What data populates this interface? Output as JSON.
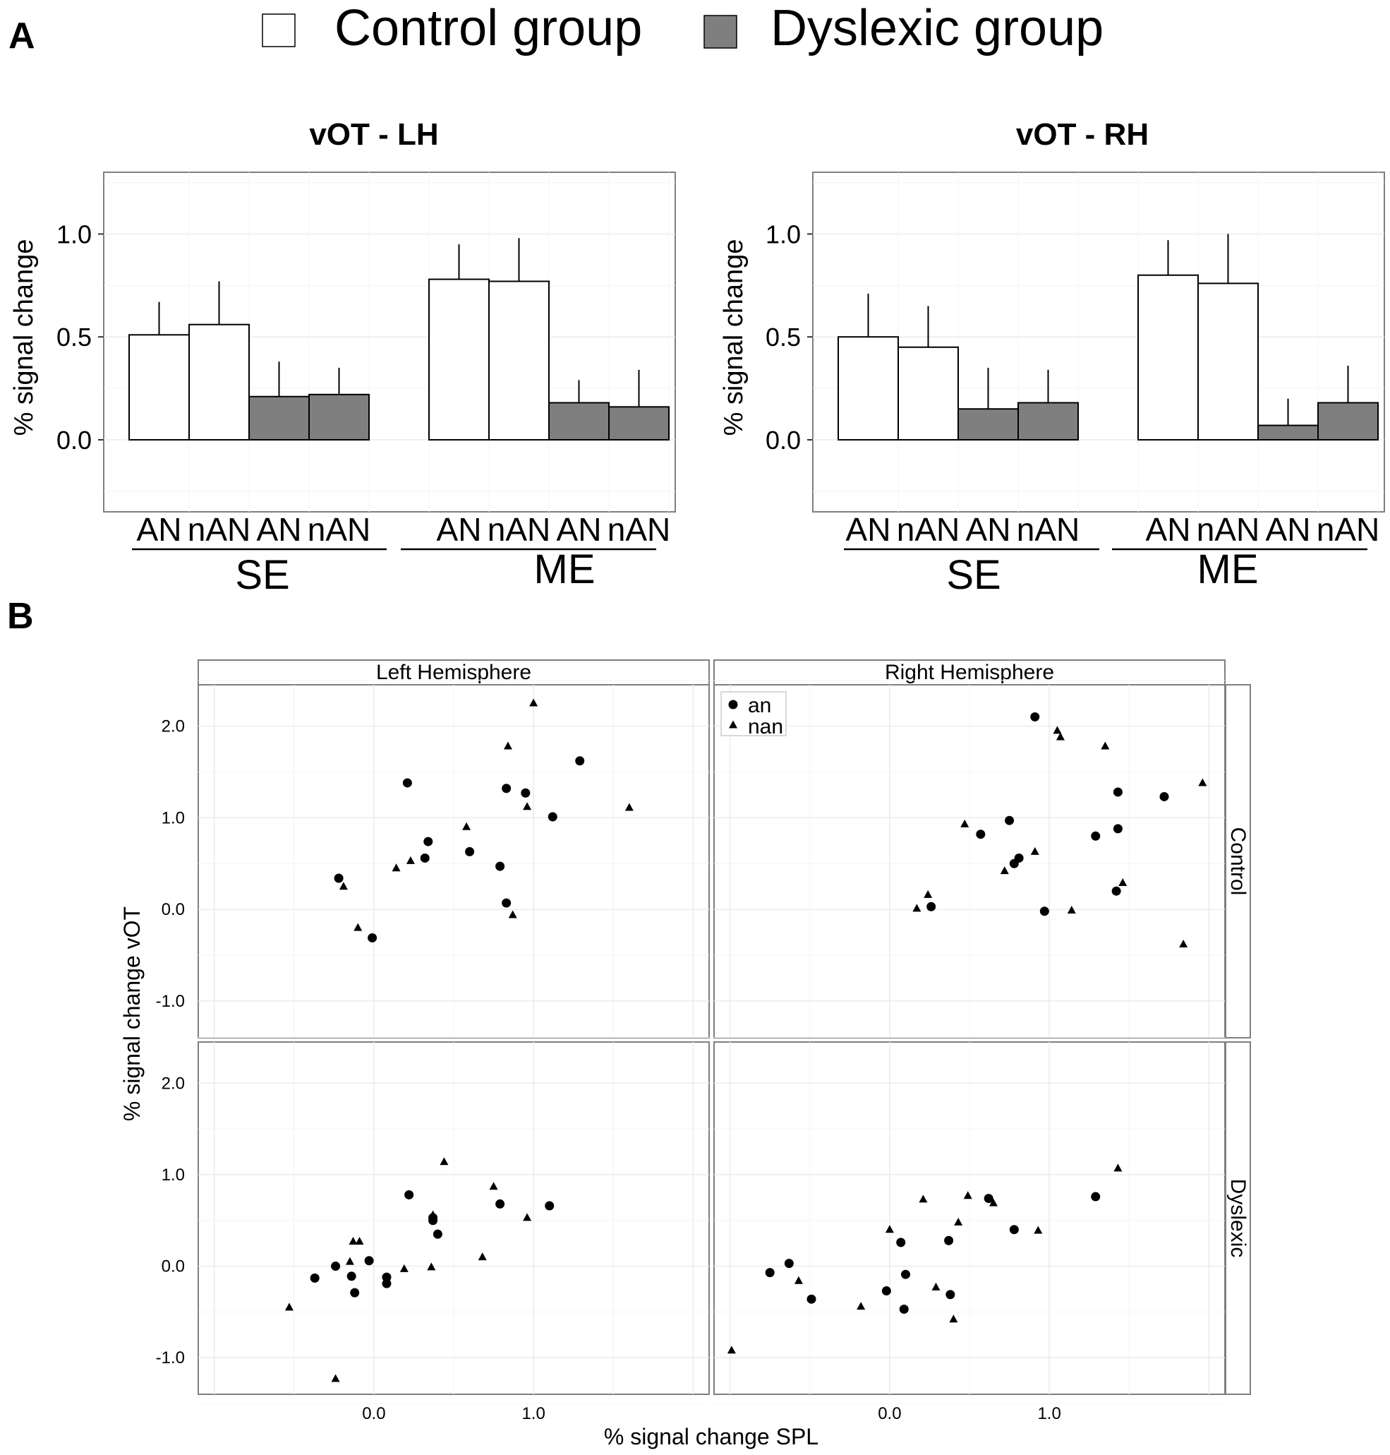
{
  "panel_labels": {
    "a": "A",
    "b": "B"
  },
  "legend": {
    "control": {
      "label": "Control group",
      "color": "#ffffff"
    },
    "dyslexic": {
      "label": "Dyslexic group",
      "color": "#7f7f7f"
    }
  },
  "colors": {
    "control_fill": "#ffffff",
    "dyslexic_fill": "#7f7f7f",
    "stroke": "#000000",
    "grid": "#ebebeb",
    "frame": "#7f7f7f"
  },
  "chart_data": [
    {
      "type": "bar",
      "title": "vOT - LH",
      "ylabel": "% signal change",
      "ylim": [
        -0.35,
        1.3
      ],
      "yticks": [
        0.0,
        0.5,
        1.0
      ],
      "ytick_labels": [
        "0.0",
        "0.5",
        "1.0"
      ],
      "categories": [
        "AN",
        "nAN",
        "AN",
        "nAN",
        "AN",
        "nAN",
        "AN",
        "nAN"
      ],
      "groups": [
        "SE",
        "ME"
      ],
      "bars": [
        {
          "cond": "SE",
          "group": "Control",
          "cat": "AN",
          "value": 0.51,
          "err": 0.16
        },
        {
          "cond": "SE",
          "group": "Control",
          "cat": "nAN",
          "value": 0.56,
          "err": 0.21
        },
        {
          "cond": "SE",
          "group": "Dyslexic",
          "cat": "AN",
          "value": 0.21,
          "err": 0.17
        },
        {
          "cond": "SE",
          "group": "Dyslexic",
          "cat": "nAN",
          "value": 0.22,
          "err": 0.13
        },
        {
          "cond": "ME",
          "group": "Control",
          "cat": "AN",
          "value": 0.78,
          "err": 0.17
        },
        {
          "cond": "ME",
          "group": "Control",
          "cat": "nAN",
          "value": 0.77,
          "err": 0.21
        },
        {
          "cond": "ME",
          "group": "Dyslexic",
          "cat": "AN",
          "value": 0.18,
          "err": 0.11
        },
        {
          "cond": "ME",
          "group": "Dyslexic",
          "cat": "nAN",
          "value": 0.16,
          "err": 0.18
        }
      ]
    },
    {
      "type": "bar",
      "title": "vOT - RH",
      "ylabel": "% signal change",
      "ylim": [
        -0.35,
        1.3
      ],
      "yticks": [
        0.0,
        0.5,
        1.0
      ],
      "ytick_labels": [
        "0.0",
        "0.5",
        "1.0"
      ],
      "categories": [
        "AN",
        "nAN",
        "AN",
        "nAN",
        "AN",
        "nAN",
        "AN",
        "nAN"
      ],
      "groups": [
        "SE",
        "ME"
      ],
      "bars": [
        {
          "cond": "SE",
          "group": "Control",
          "cat": "AN",
          "value": 0.5,
          "err": 0.21
        },
        {
          "cond": "SE",
          "group": "Control",
          "cat": "nAN",
          "value": 0.45,
          "err": 0.2
        },
        {
          "cond": "SE",
          "group": "Dyslexic",
          "cat": "AN",
          "value": 0.15,
          "err": 0.2
        },
        {
          "cond": "SE",
          "group": "Dyslexic",
          "cat": "nAN",
          "value": 0.18,
          "err": 0.16
        },
        {
          "cond": "ME",
          "group": "Control",
          "cat": "AN",
          "value": 0.8,
          "err": 0.17
        },
        {
          "cond": "ME",
          "group": "Control",
          "cat": "nAN",
          "value": 0.76,
          "err": 0.24
        },
        {
          "cond": "ME",
          "group": "Dyslexic",
          "cat": "AN",
          "value": 0.07,
          "err": 0.13
        },
        {
          "cond": "ME",
          "group": "Dyslexic",
          "cat": "nAN",
          "value": 0.18,
          "err": 0.18
        }
      ]
    },
    {
      "type": "scatter",
      "xlabel": "% signal change SPL",
      "ylabel": "% signal change vOT",
      "xlim": [
        -1.1,
        2.1
      ],
      "ylim": [
        -1.4,
        2.45
      ],
      "xticks": [
        0.0,
        1.0
      ],
      "xtick_labels": [
        "0.0",
        "1.0"
      ],
      "yticks": [
        -1.0,
        0.0,
        1.0,
        2.0
      ],
      "ytick_labels": [
        "-1.0",
        "0.0",
        "1.0",
        "2.0"
      ],
      "columns": [
        "Left Hemisphere",
        "Right Hemisphere"
      ],
      "rows": [
        "Control",
        "Dyslexic"
      ],
      "legend": [
        {
          "key": "an",
          "shape": "circle",
          "label": "an"
        },
        {
          "key": "nan",
          "shape": "triangle",
          "label": "nan"
        }
      ],
      "panels": [
        {
          "row": "Control",
          "col": "Left Hemisphere",
          "an": [
            [
              -0.22,
              0.34
            ],
            [
              -0.01,
              -0.31
            ],
            [
              0.21,
              1.38
            ],
            [
              0.32,
              0.56
            ],
            [
              0.34,
              0.74
            ],
            [
              0.6,
              0.63
            ],
            [
              0.79,
              0.47
            ],
            [
              0.83,
              1.32
            ],
            [
              0.83,
              0.07
            ],
            [
              0.95,
              1.27
            ],
            [
              1.12,
              1.01
            ],
            [
              1.29,
              1.62
            ]
          ],
          "nan": [
            [
              -0.19,
              0.25
            ],
            [
              -0.1,
              -0.2
            ],
            [
              0.14,
              0.45
            ],
            [
              0.23,
              0.53
            ],
            [
              0.58,
              0.9
            ],
            [
              0.84,
              1.78
            ],
            [
              0.87,
              -0.06
            ],
            [
              0.96,
              1.12
            ],
            [
              1.0,
              2.25
            ],
            [
              1.6,
              1.11
            ]
          ]
        },
        {
          "row": "Control",
          "col": "Right Hemisphere",
          "an": [
            [
              0.26,
              0.03
            ],
            [
              0.57,
              0.82
            ],
            [
              0.75,
              0.97
            ],
            [
              0.78,
              0.5
            ],
            [
              0.81,
              0.56
            ],
            [
              0.91,
              2.1
            ],
            [
              0.97,
              -0.02
            ],
            [
              1.29,
              0.8
            ],
            [
              1.43,
              0.88
            ],
            [
              1.43,
              1.28
            ],
            [
              1.42,
              0.2
            ],
            [
              1.72,
              1.23
            ]
          ],
          "nan": [
            [
              0.17,
              0.01
            ],
            [
              0.24,
              0.16
            ],
            [
              0.47,
              0.93
            ],
            [
              0.72,
              0.42
            ],
            [
              0.91,
              0.63
            ],
            [
              1.05,
              1.95
            ],
            [
              1.07,
              1.88
            ],
            [
              1.14,
              -0.01
            ],
            [
              1.35,
              1.78
            ],
            [
              1.46,
              0.29
            ],
            [
              1.84,
              -0.38
            ],
            [
              1.96,
              1.38
            ]
          ]
        },
        {
          "row": "Dyslexic",
          "col": "Left Hemisphere",
          "an": [
            [
              -0.37,
              -0.13
            ],
            [
              -0.24,
              0.0
            ],
            [
              -0.14,
              -0.11
            ],
            [
              -0.12,
              -0.29
            ],
            [
              -0.03,
              0.06
            ],
            [
              0.08,
              -0.12
            ],
            [
              0.08,
              -0.19
            ],
            [
              0.22,
              0.78
            ],
            [
              0.37,
              0.53
            ],
            [
              0.37,
              0.5
            ],
            [
              0.4,
              0.35
            ],
            [
              0.79,
              0.68
            ],
            [
              1.1,
              0.66
            ]
          ],
          "nan": [
            [
              -0.53,
              -0.45
            ],
            [
              -0.24,
              -1.23
            ],
            [
              -0.15,
              0.05
            ],
            [
              -0.13,
              0.27
            ],
            [
              -0.09,
              0.27
            ],
            [
              0.19,
              -0.03
            ],
            [
              0.36,
              -0.01
            ],
            [
              0.37,
              0.56
            ],
            [
              0.44,
              1.14
            ],
            [
              0.68,
              0.1
            ],
            [
              0.75,
              0.87
            ],
            [
              0.96,
              0.53
            ]
          ]
        },
        {
          "row": "Dyslexic",
          "col": "Right Hemisphere",
          "an": [
            [
              -0.75,
              -0.07
            ],
            [
              -0.63,
              0.03
            ],
            [
              -0.49,
              -0.36
            ],
            [
              -0.02,
              -0.27
            ],
            [
              0.07,
              0.26
            ],
            [
              0.09,
              -0.47
            ],
            [
              0.1,
              -0.09
            ],
            [
              0.37,
              0.28
            ],
            [
              0.38,
              -0.31
            ],
            [
              0.62,
              0.74
            ],
            [
              0.78,
              0.4
            ],
            [
              1.29,
              0.76
            ]
          ],
          "nan": [
            [
              -0.99,
              -0.92
            ],
            [
              -0.57,
              -0.16
            ],
            [
              -0.18,
              -0.44
            ],
            [
              0.0,
              0.4
            ],
            [
              0.21,
              0.73
            ],
            [
              0.29,
              -0.23
            ],
            [
              0.4,
              -0.58
            ],
            [
              0.43,
              0.48
            ],
            [
              0.49,
              0.77
            ],
            [
              0.65,
              0.69
            ],
            [
              0.93,
              0.39
            ],
            [
              1.43,
              1.07
            ]
          ]
        }
      ]
    }
  ]
}
